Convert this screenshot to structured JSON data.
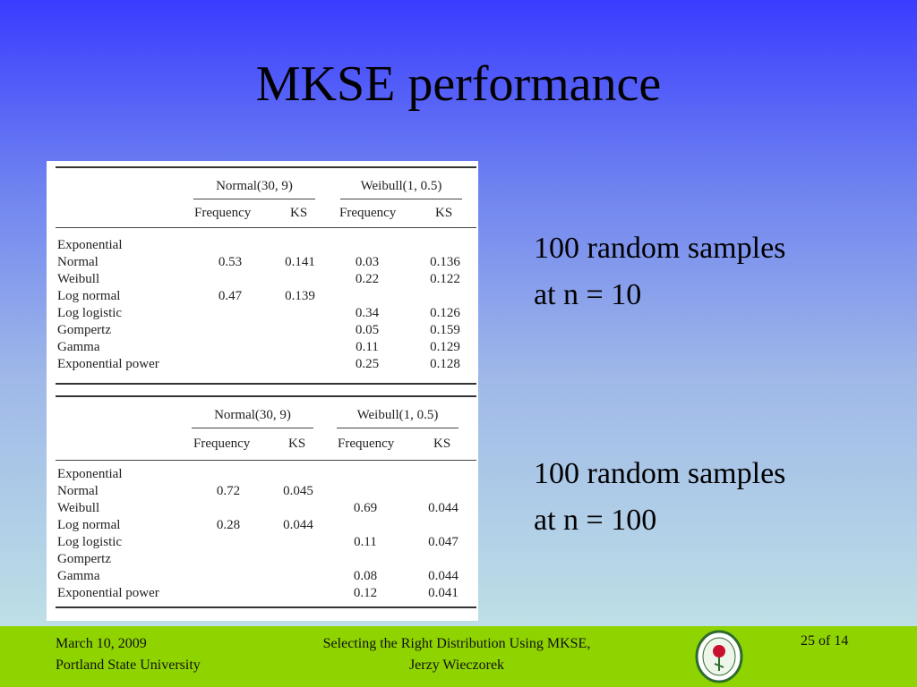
{
  "slide": {
    "title": "MKSE performance",
    "side_top_line1": "100 random samples",
    "side_top_line2": "at n = 10",
    "side_bottom_line1": "100 random samples",
    "side_bottom_line2": "at n = 100"
  },
  "table_top": {
    "group1": "Normal(30, 9)",
    "group2": "Weibull(1, 0.5)",
    "col_freq": "Frequency",
    "col_ks": "KS",
    "rows": [
      {
        "label": "Exponential",
        "nf": "",
        "nks": "",
        "wf": "",
        "wks": ""
      },
      {
        "label": "Normal",
        "nf": "0.53",
        "nks": "0.141",
        "wf": "0.03",
        "wks": "0.136"
      },
      {
        "label": "Weibull",
        "nf": "",
        "nks": "",
        "wf": "0.22",
        "wks": "0.122"
      },
      {
        "label": "Log normal",
        "nf": "0.47",
        "nks": "0.139",
        "wf": "",
        "wks": ""
      },
      {
        "label": "Log logistic",
        "nf": "",
        "nks": "",
        "wf": "0.34",
        "wks": "0.126"
      },
      {
        "label": "Gompertz",
        "nf": "",
        "nks": "",
        "wf": "0.05",
        "wks": "0.159"
      },
      {
        "label": "Gamma",
        "nf": "",
        "nks": "",
        "wf": "0.11",
        "wks": "0.129"
      },
      {
        "label": "Exponential power",
        "nf": "",
        "nks": "",
        "wf": "0.25",
        "wks": "0.128"
      }
    ]
  },
  "table_bottom": {
    "group1": "Normal(30, 9)",
    "group2": "Weibull(1, 0.5)",
    "col_freq": "Frequency",
    "col_ks": "KS",
    "rows": [
      {
        "label": "Exponential",
        "nf": "",
        "nks": "",
        "wf": "",
        "wks": ""
      },
      {
        "label": "Normal",
        "nf": "0.72",
        "nks": "0.045",
        "wf": "",
        "wks": ""
      },
      {
        "label": "Weibull",
        "nf": "",
        "nks": "",
        "wf": "0.69",
        "wks": "0.044"
      },
      {
        "label": "Log normal",
        "nf": "0.28",
        "nks": "0.044",
        "wf": "",
        "wks": ""
      },
      {
        "label": "Log logistic",
        "nf": "",
        "nks": "",
        "wf": "0.11",
        "wks": "0.047"
      },
      {
        "label": "Gompertz",
        "nf": "",
        "nks": "",
        "wf": "",
        "wks": ""
      },
      {
        "label": "Gamma",
        "nf": "",
        "nks": "",
        "wf": "0.08",
        "wks": "0.044"
      },
      {
        "label": "Exponential power",
        "nf": "",
        "nks": "",
        "wf": "0.12",
        "wks": "0.041"
      }
    ]
  },
  "footer": {
    "date": "March 10, 2009",
    "org": "Portland State University",
    "talk_title": "Selecting the Right Distribution Using MKSE,",
    "author": "Jerzy Wieczorek",
    "page": "25 of 14",
    "logo_icon": "university-seal-icon"
  },
  "colors": {
    "footer_bg": "#8fd400",
    "gradient_top": "#3a3cff",
    "gradient_bottom": "#bedfe6"
  }
}
